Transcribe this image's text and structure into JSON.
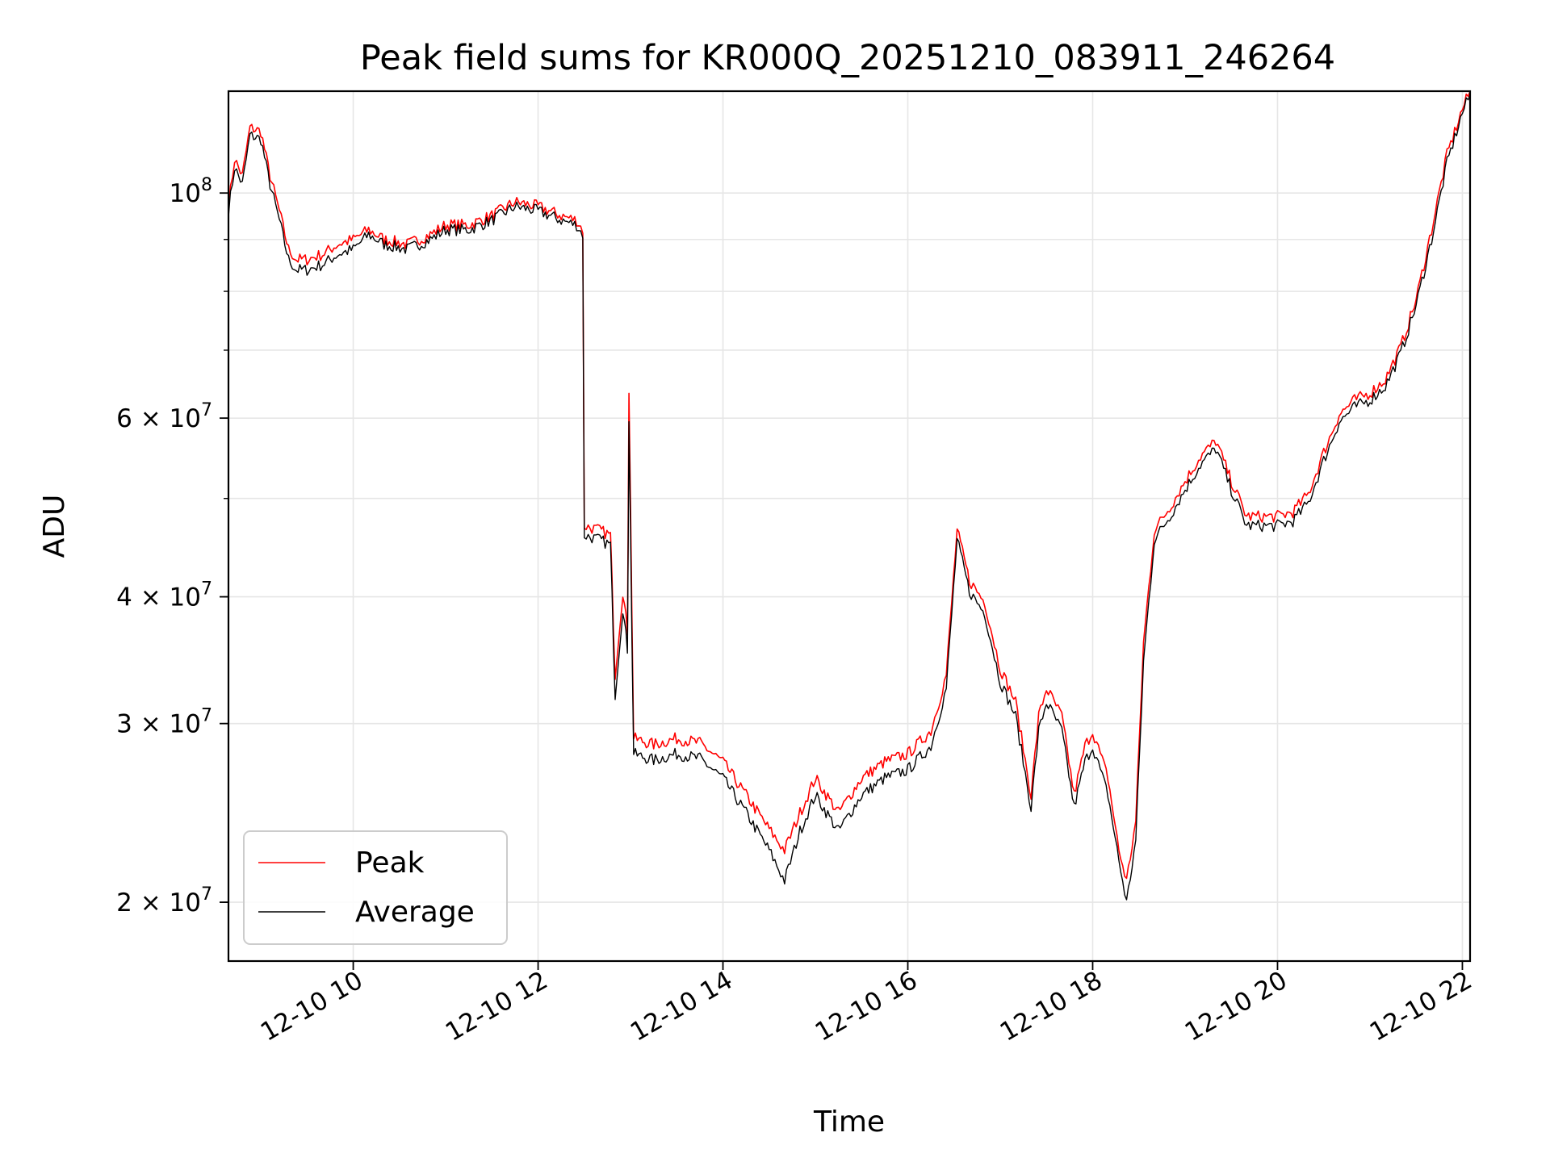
{
  "chart_data": {
    "type": "line",
    "title": "Peak field sums for KR000Q_20251210_083911_246264",
    "xlabel": "Time",
    "ylabel": "ADU",
    "y_scale": "log",
    "ylim": [
      17500000,
      126000000
    ],
    "xlim": [
      "2025-12-10 08:39",
      "2025-12-10 22:05"
    ],
    "grid": true,
    "legend_position": "lower-left",
    "x_tick_labels": [
      "12-10 10",
      "12-10 12",
      "12-10 14",
      "12-10 16",
      "12-10 18",
      "12-10 20",
      "12-10 22"
    ],
    "x_tick_values": [
      "2025-12-10 10:00",
      "2025-12-10 12:00",
      "2025-12-10 14:00",
      "2025-12-10 16:00",
      "2025-12-10 18:00",
      "2025-12-10 20:00",
      "2025-12-10 22:00"
    ],
    "y_tick_labels": [
      {
        "value": 20000000,
        "mantissa": "2",
        "exponent": "7"
      },
      {
        "value": 30000000,
        "mantissa": "3",
        "exponent": "7"
      },
      {
        "value": 40000000,
        "mantissa": "4",
        "exponent": "7"
      },
      {
        "value": 60000000,
        "mantissa": "6",
        "exponent": "7"
      },
      {
        "value": 100000000,
        "mantissa": "",
        "exponent": "8"
      }
    ],
    "x": [
      "2025-12-10 08:39",
      "2025-12-10 08:43",
      "2025-12-10 08:48",
      "2025-12-10 08:53",
      "2025-12-10 09:00",
      "2025-12-10 09:06",
      "2025-12-10 09:12",
      "2025-12-10 09:18",
      "2025-12-10 09:23",
      "2025-12-10 09:30",
      "2025-12-10 09:40",
      "2025-12-10 09:50",
      "2025-12-10 10:00",
      "2025-12-10 10:10",
      "2025-12-10 10:20",
      "2025-12-10 10:35",
      "2025-12-10 10:50",
      "2025-12-10 11:00",
      "2025-12-10 11:15",
      "2025-12-10 11:30",
      "2025-12-10 11:45",
      "2025-12-10 12:00",
      "2025-12-10 12:15",
      "2025-12-10 12:25",
      "2025-12-10 12:29",
      "2025-12-10 12:30",
      "2025-12-10 12:40",
      "2025-12-10 12:47",
      "2025-12-10 12:50",
      "2025-12-10 12:55",
      "2025-12-10 12:58",
      "2025-12-10 12:59",
      "2025-12-10 13:02",
      "2025-12-10 13:15",
      "2025-12-10 13:30",
      "2025-12-10 13:45",
      "2025-12-10 14:00",
      "2025-12-10 14:15",
      "2025-12-10 14:30",
      "2025-12-10 14:40",
      "2025-12-10 14:50",
      "2025-12-10 15:00",
      "2025-12-10 15:15",
      "2025-12-10 15:30",
      "2025-12-10 15:45",
      "2025-12-10 16:00",
      "2025-12-10 16:15",
      "2025-12-10 16:25",
      "2025-12-10 16:32",
      "2025-12-10 16:40",
      "2025-12-10 16:50",
      "2025-12-10 17:00",
      "2025-12-10 17:10",
      "2025-12-10 17:20",
      "2025-12-10 17:25",
      "2025-12-10 17:30",
      "2025-12-10 17:40",
      "2025-12-10 17:48",
      "2025-12-10 17:55",
      "2025-12-10 18:00",
      "2025-12-10 18:10",
      "2025-12-10 18:17",
      "2025-12-10 18:22",
      "2025-12-10 18:28",
      "2025-12-10 18:33",
      "2025-12-10 18:40",
      "2025-12-10 18:50",
      "2025-12-10 19:00",
      "2025-12-10 19:10",
      "2025-12-10 19:20",
      "2025-12-10 19:30",
      "2025-12-10 19:40",
      "2025-12-10 19:50",
      "2025-12-10 20:00",
      "2025-12-10 20:10",
      "2025-12-10 20:20",
      "2025-12-10 20:30",
      "2025-12-10 20:40",
      "2025-12-10 20:50",
      "2025-12-10 21:00",
      "2025-12-10 21:10",
      "2025-12-10 21:20",
      "2025-12-10 21:30",
      "2025-12-10 21:40",
      "2025-12-10 21:50",
      "2025-12-10 22:00",
      "2025-12-10 22:05"
    ],
    "series": [
      {
        "name": "Peak",
        "color": "#ff0000",
        "values": [
          97000000,
          108000000,
          104000000,
          116000000,
          115000000,
          104000000,
          96000000,
          88000000,
          86000000,
          86000000,
          87000000,
          89000000,
          90000000,
          92000000,
          90000000,
          89000000,
          91000000,
          93000000,
          93000000,
          95000000,
          98000000,
          97000000,
          95000000,
          94000000,
          92000000,
          47000000,
          46500000,
          46000000,
          33500000,
          40500000,
          37000000,
          64000000,
          29000000,
          28600000,
          29000000,
          28700000,
          27500000,
          25500000,
          23600000,
          22500000,
          24500000,
          26500000,
          24500000,
          26500000,
          27500000,
          28000000,
          29500000,
          33500000,
          46500000,
          41500000,
          39500000,
          34000000,
          31500000,
          25500000,
          30500000,
          32500000,
          30500000,
          25500000,
          28500000,
          29500000,
          26500000,
          22500000,
          21000000,
          24000000,
          36000000,
          46500000,
          49000000,
          52000000,
          55000000,
          57000000,
          52000000,
          48000000,
          48000000,
          48000000,
          48500000,
          50500000,
          55500000,
          60500000,
          62500000,
          63500000,
          65500000,
          70500000,
          78500000,
          92000000,
          109000000,
          121000000,
          126000000
        ]
      },
      {
        "name": "Average",
        "color": "#000000",
        "values": [
          96000000,
          106000000,
          102000000,
          114000000,
          113000000,
          102000000,
          94000000,
          86000000,
          84000000,
          84000000,
          85000000,
          87000000,
          88000000,
          91000000,
          89000000,
          88000000,
          90000000,
          92000000,
          92000000,
          94000000,
          97000000,
          96000000,
          94000000,
          93000000,
          91000000,
          46000000,
          45500000,
          45000000,
          32000000,
          39000000,
          35500000,
          60000000,
          28000000,
          27600000,
          28000000,
          27700000,
          26500000,
          24500000,
          22500000,
          21000000,
          23500000,
          25500000,
          23500000,
          25500000,
          26500000,
          27000000,
          28500000,
          32500000,
          45500000,
          40500000,
          38500000,
          33000000,
          30500000,
          24800000,
          29500000,
          31500000,
          29500000,
          24800000,
          27500000,
          28500000,
          25500000,
          22000000,
          20000000,
          23000000,
          34500000,
          45500000,
          48000000,
          51000000,
          54000000,
          56000000,
          51000000,
          47000000,
          47000000,
          47000000,
          47500000,
          49500000,
          54500000,
          59500000,
          61500000,
          62500000,
          64500000,
          69500000,
          77500000,
          90000000,
          107000000,
          120000000,
          125000000
        ]
      }
    ]
  }
}
